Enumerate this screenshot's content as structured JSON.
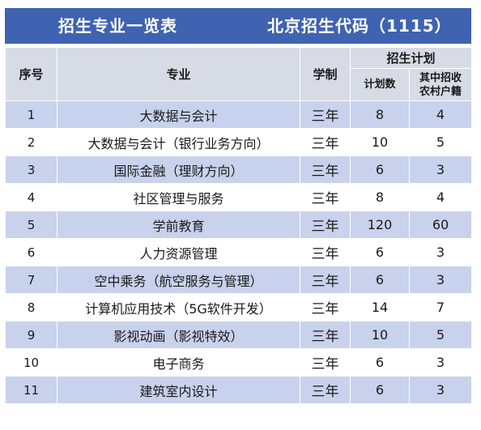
{
  "header": {
    "title_left": "招生专业一览表",
    "title_right": "北京招生代码（1115）"
  },
  "columns": {
    "index": "序号",
    "major": "专业",
    "duration": "学制",
    "plan_group": "招生计划",
    "plan_total": "计划数",
    "plan_rural_line1": "其中招收",
    "plan_rural_line2": "农村户籍"
  },
  "rows": [
    {
      "index": "1",
      "major": "大数据与会计",
      "duration": "三年",
      "total": "8",
      "rural": "4"
    },
    {
      "index": "2",
      "major": "大数据与会计（银行业务方向）",
      "duration": "三年",
      "total": "10",
      "rural": "5"
    },
    {
      "index": "3",
      "major": "国际金融（理财方向）",
      "duration": "三年",
      "total": "6",
      "rural": "3"
    },
    {
      "index": "4",
      "major": "社区管理与服务",
      "duration": "三年",
      "total": "8",
      "rural": "4"
    },
    {
      "index": "5",
      "major": "学前教育",
      "duration": "三年",
      "total": "120",
      "rural": "60"
    },
    {
      "index": "6",
      "major": "人力资源管理",
      "duration": "三年",
      "total": "6",
      "rural": "3"
    },
    {
      "index": "7",
      "major": "空中乘务（航空服务与管理）",
      "duration": "三年",
      "total": "6",
      "rural": "3"
    },
    {
      "index": "8",
      "major": "计算机应用技术（5G软件开发）",
      "duration": "三年",
      "total": "14",
      "rural": "7"
    },
    {
      "index": "9",
      "major": "影视动画（影视特效）",
      "duration": "三年",
      "total": "10",
      "rural": "5"
    },
    {
      "index": "10",
      "major": "电子商务",
      "duration": "三年",
      "total": "6",
      "rural": "3"
    },
    {
      "index": "11",
      "major": "建筑室内设计",
      "duration": "三年",
      "total": "6",
      "rural": "3"
    }
  ],
  "colors": {
    "title_bar": "#3f63b0",
    "header_bg": "#d7dbe6",
    "stripe_bg": "#c9d2ec"
  }
}
